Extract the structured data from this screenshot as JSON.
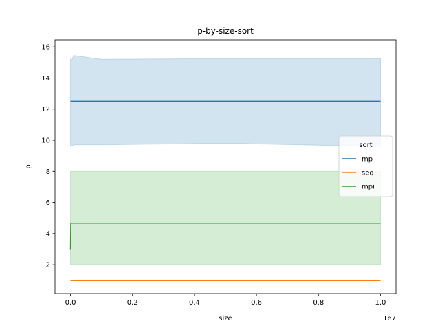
{
  "chart_data": {
    "type": "line",
    "title": "p-by-size-sort",
    "xlabel": "size",
    "ylabel": "p",
    "x_offset_label": "1e7",
    "xlim": [
      -0.05,
      1.05
    ],
    "ylim": [
      0.15,
      16.45
    ],
    "x_ticks": [
      0.0,
      0.2,
      0.4,
      0.6,
      0.8,
      1.0
    ],
    "x_tick_labels": [
      "0.0",
      "0.2",
      "0.4",
      "0.6",
      "0.8",
      "1.0"
    ],
    "y_ticks": [
      2,
      4,
      6,
      8,
      10,
      12,
      14,
      16
    ],
    "y_tick_labels": [
      "2",
      "4",
      "6",
      "8",
      "10",
      "12",
      "14",
      "16"
    ],
    "grid": false,
    "legend": {
      "title": "sort",
      "placement": "center-right"
    },
    "series": [
      {
        "name": "mp",
        "color": "#1f77b4",
        "x": [
          0.0,
          0.001,
          0.01,
          0.1,
          0.5,
          1.0
        ],
        "y": [
          12.5,
          12.5,
          12.5,
          12.5,
          12.5,
          12.5
        ],
        "band_low": [
          9.7,
          9.6,
          9.7,
          9.7,
          9.8,
          9.6
        ],
        "band_high": [
          15.3,
          15.0,
          15.45,
          15.2,
          15.25,
          15.25
        ]
      },
      {
        "name": "seq",
        "color": "#ff7f0e",
        "x": [
          0.0,
          1.0
        ],
        "y": [
          1.0,
          1.0
        ]
      },
      {
        "name": "mpi",
        "color": "#2ca02c",
        "x": [
          0.0,
          0.001,
          1.0
        ],
        "y": [
          3.0,
          4.67,
          4.67
        ],
        "band_low": [
          2.0,
          2.0,
          2.0
        ],
        "band_high": [
          8.0,
          8.0,
          8.0
        ]
      }
    ]
  }
}
